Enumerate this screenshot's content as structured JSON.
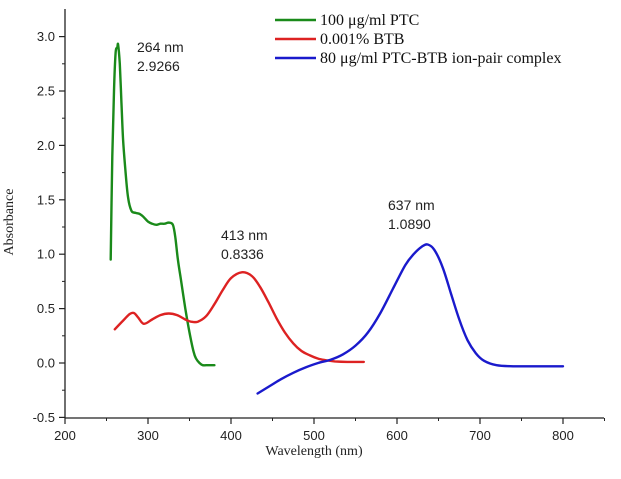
{
  "chart_data": {
    "type": "line",
    "title": "",
    "xlabel": "Wavelength (nm)",
    "ylabel": "Absorbance",
    "xlim": [
      200,
      850
    ],
    "ylim": [
      -0.5,
      3.25
    ],
    "xticks": [
      200,
      300,
      400,
      500,
      600,
      700,
      800
    ],
    "xtick_labels": [
      "200",
      "300",
      "400",
      "500",
      "600",
      "700",
      "800"
    ],
    "yticks": [
      -0.5,
      0.0,
      0.5,
      1.0,
      1.5,
      2.0,
      2.5,
      3.0
    ],
    "ytick_labels": [
      "-0.5",
      "0.0",
      "0.5",
      "1.0",
      "1.5",
      "2.0",
      "2.5",
      "3.0"
    ],
    "grid": false,
    "legend_position": "top-right",
    "series": [
      {
        "name": "100 μg/ml PTC",
        "color": "#1a8a1a",
        "x": [
          255,
          257,
          259,
          261,
          263,
          264,
          266,
          268,
          270,
          273,
          276,
          280,
          285,
          290,
          295,
          300,
          305,
          310,
          315,
          320,
          325,
          330,
          333,
          336,
          340,
          345,
          350,
          355,
          358,
          362,
          366,
          370,
          375,
          380
        ],
        "y": [
          0.95,
          1.9,
          2.5,
          2.85,
          2.9,
          2.9266,
          2.75,
          2.4,
          2.05,
          1.75,
          1.52,
          1.4,
          1.38,
          1.37,
          1.34,
          1.3,
          1.28,
          1.27,
          1.28,
          1.28,
          1.29,
          1.27,
          1.15,
          0.95,
          0.75,
          0.5,
          0.28,
          0.1,
          0.04,
          0.0,
          -0.02,
          -0.02,
          -0.02,
          -0.02
        ]
      },
      {
        "name": "0.001% BTB",
        "color": "#dd2222",
        "x": [
          260,
          270,
          278,
          283,
          288,
          295,
          305,
          315,
          325,
          335,
          345,
          352,
          360,
          370,
          380,
          390,
          400,
          413,
          425,
          435,
          445,
          455,
          465,
          475,
          485,
          495,
          505,
          515,
          525,
          540,
          560
        ],
        "y": [
          0.31,
          0.39,
          0.45,
          0.46,
          0.42,
          0.36,
          0.4,
          0.44,
          0.455,
          0.44,
          0.4,
          0.38,
          0.38,
          0.43,
          0.54,
          0.67,
          0.78,
          0.8336,
          0.8,
          0.7,
          0.56,
          0.41,
          0.28,
          0.18,
          0.11,
          0.07,
          0.04,
          0.025,
          0.015,
          0.01,
          0.01
        ]
      },
      {
        "name": "80 μg/ml PTC-BTB ion-pair complex",
        "color": "#1a1acc",
        "x": [
          432,
          445,
          460,
          475,
          490,
          505,
          520,
          535,
          550,
          565,
          580,
          595,
          610,
          620,
          630,
          637,
          645,
          655,
          665,
          675,
          685,
          695,
          705,
          720,
          740,
          760,
          780,
          800
        ],
        "y": [
          -0.28,
          -0.22,
          -0.15,
          -0.09,
          -0.04,
          0.0,
          0.03,
          0.08,
          0.16,
          0.28,
          0.46,
          0.68,
          0.9,
          1.0,
          1.07,
          1.089,
          1.04,
          0.88,
          0.64,
          0.4,
          0.21,
          0.09,
          0.02,
          -0.02,
          -0.03,
          -0.03,
          -0.03,
          -0.03
        ]
      }
    ],
    "annotations": [
      {
        "line1": "264 nm",
        "line2": "2.9266",
        "x": 264,
        "y": 2.9266
      },
      {
        "line1": "413 nm",
        "line2": "0.8336",
        "x": 413,
        "y": 0.8336
      },
      {
        "line1": "637 nm",
        "line2": "1.0890",
        "x": 637,
        "y": 1.089
      }
    ]
  }
}
